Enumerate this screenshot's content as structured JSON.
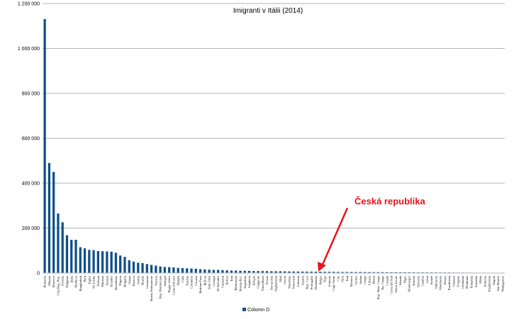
{
  "chart_data": {
    "type": "bar",
    "title": "Imigranti v Itálii (2014)",
    "xlabel": "",
    "ylabel": "",
    "ylim": [
      0,
      1200000
    ],
    "yticks": [
      0,
      200000,
      400000,
      600000,
      800000,
      1000000,
      1200000
    ],
    "ytick_labels": [
      "0",
      "200 000",
      "400 000",
      "600 000",
      "800 000",
      "1 000 000",
      "1 200 000"
    ],
    "grid": true,
    "legend_position": "bottom",
    "bar_color": "#0f4f8a",
    "categories": [
      "Romania",
      "Albania",
      "Marocco",
      "Cina Rep. Pop.",
      "Ucraina",
      "Filippine",
      "India",
      "Moldova",
      "Bangladesh",
      "Perù",
      "Egitto",
      "Sri Lanka",
      "Polonia",
      "Pakistan",
      "Tunisia",
      "Ecuador",
      "Macedonia",
      "Nigeria",
      "Bulgaria",
      "Ghana",
      "Kosovo",
      "Serbia",
      "Brasile",
      "Germania",
      "Russia Federazione",
      "Francia",
      "Rep. Dominicana",
      "Senegal",
      "Regno Unito",
      "Costa d'Avorio",
      "Spagna",
      "Cuba",
      "Turchia",
      "Colombia",
      "Croazia",
      "Burkina Faso",
      "Bolivia",
      "Stati Uniti",
      "Georgia",
      "El Salvador",
      "Camerun",
      "Eritrea",
      "Iran",
      "Bielorussia",
      "Bosnia-Erz.",
      "Argentina",
      "Ungheria",
      "Etiopia",
      "Giappone",
      "Paesi Bassi",
      "Svezia",
      "Slovacchia",
      "Afghanistan",
      "Mali",
      "Grecia",
      "Mauritius",
      "Venezuela",
      "Lituania",
      "Austria",
      "Rep. Ceca",
      "Portogallo",
      "Thailandia",
      "Belgio",
      "Togo",
      "Lettonia",
      "Capo Verde",
      "Cile",
      "Siria",
      "Iraq",
      "Messico",
      "Guinea",
      "Sudan",
      "Congo",
      "Libano",
      "Benin",
      "Rep. Dem. Congo",
      "Eq. Congo",
      "Canada",
      "Corea del Sud",
      "Sierra Leone",
      "Irlanda",
      "Niger",
      "Montenegro",
      "Estonia",
      "Slovenia",
      "Gambia",
      "Libia",
      "Israele",
      "Indonesia",
      "Mauritania",
      "Kenya",
      "Kazakistan",
      "Vietnam",
      "Uruguay",
      "Giordania",
      "Honduras",
      "Finlandia",
      "Australia",
      "Malta",
      "Armenia",
      "Kirghizistan",
      "Angola",
      "San Marino",
      "Madagascar"
    ],
    "series": [
      {
        "name": "Column D",
        "values": [
          1131000,
          490000,
          450000,
          265000,
          226000,
          168000,
          148000,
          148000,
          115000,
          110000,
          103000,
          102000,
          98000,
          97000,
          96000,
          95000,
          90000,
          78000,
          72000,
          57000,
          51000,
          46000,
          44000,
          40000,
          36000,
          33000,
          29000,
          27000,
          26000,
          25000,
          23000,
          22000,
          21000,
          20000,
          19000,
          17000,
          16000,
          15000,
          14000,
          14000,
          13000,
          12000,
          11000,
          11000,
          10000,
          9800,
          9500,
          9200,
          9000,
          8800,
          8500,
          8200,
          8000,
          7800,
          7500,
          7200,
          7000,
          6800,
          6600,
          6400,
          6200,
          6000,
          5800,
          5600,
          5400,
          5200,
          5000,
          4800,
          4600,
          4500,
          4400,
          4300,
          4200,
          4100,
          4000,
          3900,
          3800,
          3700,
          3600,
          3500,
          3400,
          3300,
          3200,
          3100,
          3000,
          2900,
          2800,
          2700,
          2600,
          2500,
          2400,
          2300,
          2200,
          2100,
          2000,
          1900,
          1800,
          1700,
          1600,
          1500,
          1400,
          1300,
          1200,
          1100
        ]
      }
    ],
    "annotation": {
      "text": "Česká republika",
      "target": "Rep. Ceca",
      "color": "#e8141c"
    }
  }
}
